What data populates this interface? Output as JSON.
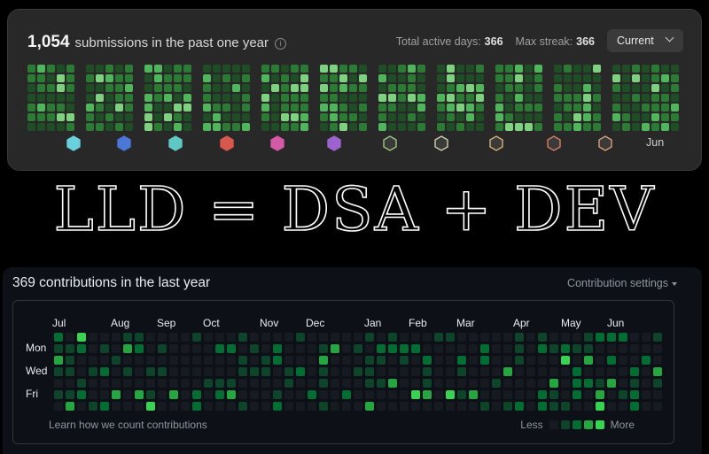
{
  "leetcode": {
    "count": "1,054",
    "count_text": "submissions in the past one year",
    "active_days_label": "Total active days:",
    "active_days_value": "366",
    "max_streak_label": "Max streak:",
    "max_streak_value": "366",
    "range_select": "Current",
    "month_label": "Jun",
    "colors": [
      "#1f4d25",
      "#2c7b34",
      "#4fb65c",
      "#7ed27f"
    ],
    "badge_colors": [
      "#6ad1dc",
      "#4b77d6",
      "#5fc8c5",
      "#d7584f",
      "#d45aa8",
      "#9c63d0",
      "#9fc77d",
      "#cfcfb0",
      "#d8b07b",
      "#d87e63",
      "#d8a07b"
    ]
  },
  "headline": "LLD = DSA + DEV",
  "github": {
    "title": "369 contributions in the last year",
    "settings": "Contribution settings",
    "months": [
      "Jul",
      "Aug",
      "Sep",
      "Oct",
      "Nov",
      "Dec",
      "Jan",
      "Feb",
      "Mar",
      "Apr",
      "May",
      "Jun"
    ],
    "days": [
      "Mon",
      "Wed",
      "Fri"
    ],
    "learn": "Learn how we count contributions",
    "legend_less": "Less",
    "legend_more": "More",
    "colors": [
      "#161b22",
      "#0e4429",
      "#006d32",
      "#26a641",
      "#39d353"
    ]
  }
}
